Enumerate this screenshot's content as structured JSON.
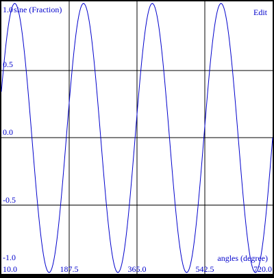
{
  "toolbar": {
    "edit_label": "Edit"
  },
  "colors": {
    "frame": "#000000",
    "plot_bg": "#ffffff",
    "grid": "#000000",
    "curve": "#0000cc",
    "text": "#0000cc"
  },
  "chart_data": {
    "type": "line",
    "title": "",
    "ylabel": "sine (Fraction)",
    "xlabel": "angles (degree)",
    "xlim": [
      10.0,
      720.0
    ],
    "ylim": [
      -1.0,
      1.0
    ],
    "x_ticks": [
      "10.0",
      "187.5",
      "365.0",
      "542.5",
      "720.0"
    ],
    "y_ticks": [
      "1.0",
      "0.5",
      "0.0",
      "-0.5",
      "-1.0"
    ],
    "grid": true,
    "function": "y = sin(2 * x)",
    "x_step": 2.5
  }
}
